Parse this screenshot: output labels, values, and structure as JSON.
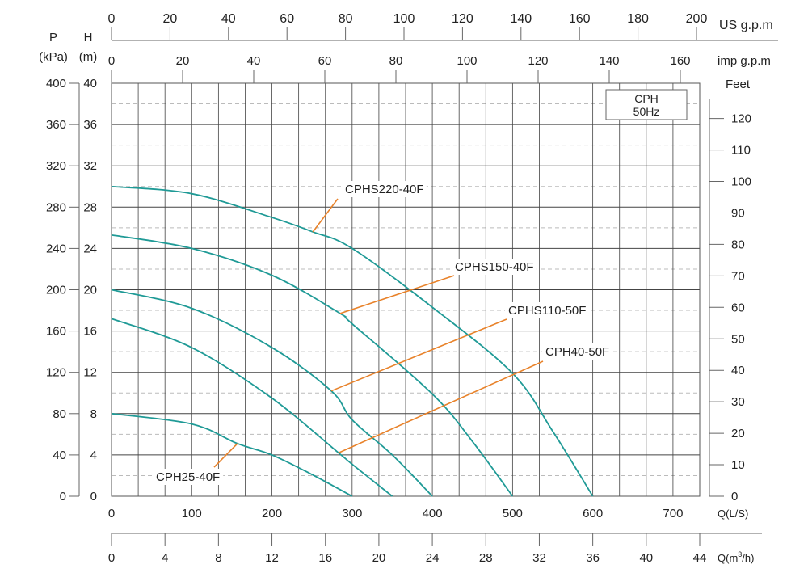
{
  "chart_data": {
    "type": "line",
    "title": "",
    "legend_box": {
      "line1": "CPH",
      "line2": "50Hz"
    },
    "x_axis": {
      "label": "Q(L/S)",
      "range": [
        0,
        733.3
      ],
      "ticks": [
        0,
        100,
        200,
        300,
        400,
        500,
        600,
        700
      ]
    },
    "x_axis_m3h": {
      "label_prefix": "Q(m",
      "label_sup": "3",
      "label_suffix": "/h)",
      "range": [
        0,
        44
      ],
      "ticks": [
        0,
        4,
        8,
        12,
        16,
        20,
        24,
        28,
        32,
        36,
        40,
        44
      ]
    },
    "x_axis_us_gpm": {
      "label": "US g.p.m",
      "range": [
        0,
        200
      ],
      "ticks": [
        0,
        20,
        40,
        60,
        80,
        100,
        120,
        140,
        160,
        180,
        200
      ]
    },
    "x_axis_imp_gpm": {
      "label": "imp g.p.m",
      "range": [
        0,
        160
      ],
      "ticks": [
        0,
        20,
        40,
        60,
        80,
        100,
        120,
        140,
        160
      ]
    },
    "y_axis_head": {
      "label_top": "H",
      "label_unit": "(m)",
      "range": [
        0,
        40
      ],
      "ticks": [
        0,
        4,
        8,
        12,
        16,
        20,
        24,
        28,
        32,
        36,
        40
      ]
    },
    "y_axis_pressure": {
      "label_top": "P",
      "label_unit": "(kPa)",
      "range": [
        0,
        400
      ],
      "ticks": [
        0,
        40,
        80,
        120,
        160,
        200,
        240,
        280,
        320,
        360,
        400
      ]
    },
    "y_axis_feet": {
      "label": "Feet",
      "range": [
        0,
        131.2
      ],
      "ticks": [
        0,
        10,
        20,
        30,
        40,
        50,
        60,
        70,
        80,
        90,
        100,
        110,
        120
      ]
    },
    "grid": true,
    "colors": {
      "curve": "#1f9a96",
      "leader": "#e8822a",
      "grid": "#333333",
      "grid_dashed": "#bbbbbb"
    },
    "series": [
      {
        "name": "CPHS220-40F",
        "x": [
          0,
          100,
          200,
          251,
          300,
          400,
          500,
          550,
          600
        ],
        "y": [
          30,
          29.3,
          27,
          25.6,
          24.0,
          18.3,
          11.9,
          6.3,
          0
        ],
        "label_anchor": [
          251,
          25.6
        ]
      },
      {
        "name": "CPHS150-40F",
        "x": [
          0,
          100,
          200,
          285,
          300,
          400,
          450,
          500
        ],
        "y": [
          25.3,
          24.0,
          21.4,
          17.7,
          16.7,
          9.9,
          5.3,
          0
        ],
        "label_anchor": [
          285,
          17.7
        ]
      },
      {
        "name": "CPHS110-50F",
        "x": [
          0,
          100,
          200,
          274,
          300,
          350,
          400
        ],
        "y": [
          20,
          18.2,
          14.4,
          10.2,
          7.4,
          4.0,
          0
        ],
        "label_anchor": [
          274,
          10.2
        ]
      },
      {
        "name": "CPH40-50F",
        "x": [
          0,
          100,
          200,
          283,
          300,
          350
        ],
        "y": [
          17.2,
          14.4,
          9.5,
          4.2,
          3.1,
          0
        ],
        "label_anchor": [
          283,
          4.2
        ]
      },
      {
        "name": "CPH25-40F",
        "x": [
          0,
          100,
          157,
          200,
          250,
          300
        ],
        "y": [
          8,
          7.0,
          5.1,
          4.0,
          2.1,
          0
        ],
        "label_anchor": [
          157,
          5.1
        ]
      }
    ]
  }
}
